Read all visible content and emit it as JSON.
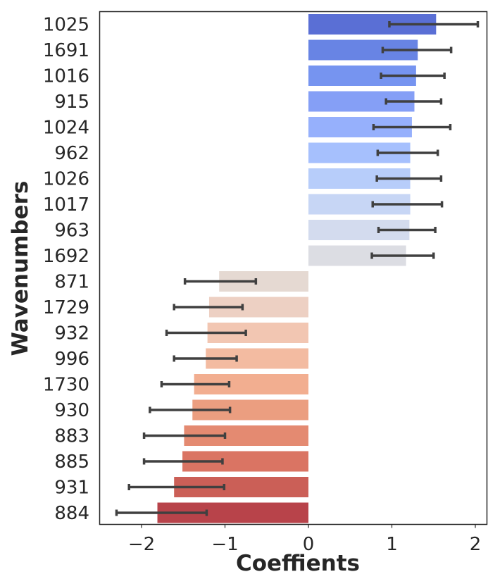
{
  "chart_data": {
    "type": "bar",
    "orientation": "horizontal",
    "xlabel": "Coeffients",
    "ylabel": "Wavenumbers",
    "xlim": [
      -2.5,
      2.15
    ],
    "xticks": [
      -2,
      -1,
      0,
      1,
      2
    ],
    "xtick_labels": [
      "−2",
      "−1",
      "0",
      "1",
      "2"
    ],
    "grid": false,
    "legend": "none",
    "categories": [
      "1025",
      "1691",
      "1016",
      "915",
      "1024",
      "962",
      "1026",
      "1017",
      "963",
      "1692",
      "871",
      "1729",
      "932",
      "996",
      "1730",
      "930",
      "883",
      "885",
      "931",
      "884"
    ],
    "values": [
      1.53,
      1.31,
      1.29,
      1.27,
      1.24,
      1.22,
      1.22,
      1.22,
      1.21,
      1.17,
      -1.07,
      -1.19,
      -1.21,
      -1.23,
      -1.37,
      -1.39,
      -1.49,
      -1.51,
      -1.61,
      -1.81
    ],
    "error_low": [
      0.97,
      0.89,
      0.87,
      0.93,
      0.78,
      0.83,
      0.82,
      0.77,
      0.84,
      0.76,
      -1.48,
      -1.61,
      -1.7,
      -1.61,
      -1.76,
      -1.9,
      -1.97,
      -1.97,
      -2.15,
      -2.3
    ],
    "error_high": [
      2.03,
      1.71,
      1.63,
      1.59,
      1.7,
      1.55,
      1.59,
      1.6,
      1.52,
      1.5,
      -0.63,
      -0.79,
      -0.75,
      -0.86,
      -0.95,
      -0.94,
      -1.0,
      -1.03,
      -1.01,
      -1.22
    ],
    "colors": [
      "#5a6fd5",
      "#6884e4",
      "#7694f0",
      "#859ff6",
      "#96b0fc",
      "#a6c0fd",
      "#b7cdfa",
      "#c7d6f5",
      "#d3dbee",
      "#dcdde3",
      "#e5d9d2",
      "#edd0c3",
      "#f2c6b2",
      "#f3bba1",
      "#f2ae90",
      "#eb9e80",
      "#e48a71",
      "#da7463",
      "#cb5f57",
      "#b8434a"
    ],
    "error_color": "#404040"
  }
}
